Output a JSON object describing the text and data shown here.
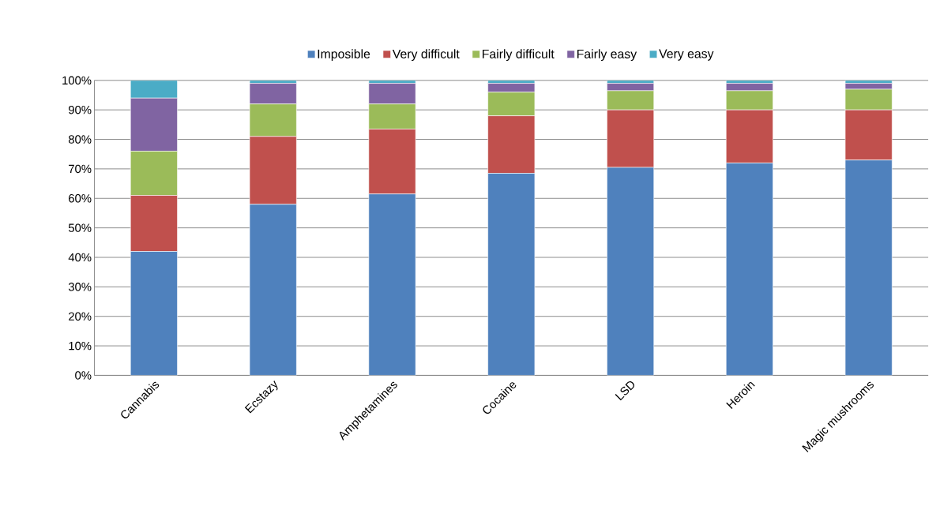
{
  "chart_data": {
    "type": "bar",
    "stacked": true,
    "categories": [
      "Cannabis",
      "Ecstazy",
      "Amphetamines",
      "Cocaine",
      "LSD",
      "Heroin",
      "Magic mushrooms"
    ],
    "series": [
      {
        "name": "Imposible",
        "color": "#4f81bd",
        "values": [
          42,
          58,
          61.5,
          68.5,
          70.5,
          72,
          73
        ]
      },
      {
        "name": "Very difficult",
        "color": "#c0504d",
        "values": [
          19,
          23,
          22,
          19.5,
          19.5,
          18,
          17
        ]
      },
      {
        "name": "Fairly difficult",
        "color": "#9bbb59",
        "values": [
          15,
          11,
          8.5,
          8,
          6.5,
          6.5,
          7
        ]
      },
      {
        "name": "Fairly easy",
        "color": "#8064a2",
        "values": [
          18,
          7,
          7,
          3,
          2.5,
          2.5,
          2
        ]
      },
      {
        "name": "Very easy",
        "color": "#4bacc6",
        "values": [
          6,
          1,
          1,
          1,
          1,
          1,
          1
        ]
      }
    ],
    "ylim": [
      0,
      100
    ],
    "yticks": [
      {
        "value": 0,
        "label": "0%"
      },
      {
        "value": 10,
        "label": "10%"
      },
      {
        "value": 20,
        "label": "20%"
      },
      {
        "value": 30,
        "label": "30%"
      },
      {
        "value": 40,
        "label": "40%"
      },
      {
        "value": 50,
        "label": "50%"
      },
      {
        "value": 60,
        "label": "60%"
      },
      {
        "value": 70,
        "label": "70%"
      },
      {
        "value": 80,
        "label": "80%"
      },
      {
        "value": 90,
        "label": "90%"
      },
      {
        "value": 100,
        "label": "100%"
      }
    ],
    "grid": "y",
    "legend": "top"
  }
}
